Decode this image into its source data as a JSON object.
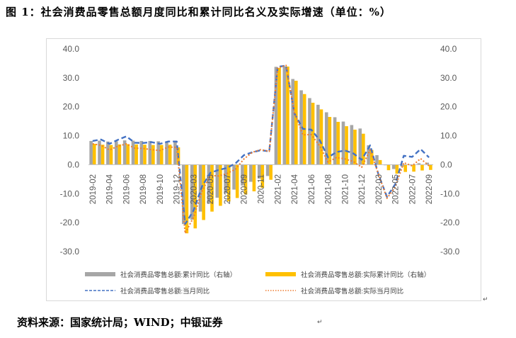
{
  "title": "图 1：社会消费品零售总额月度同比和累计同比名义及实际增速（单位：%）",
  "source": "资料来源：国家统计局；WIND；中银证券",
  "paragraph_mark": "↵",
  "chart_data": {
    "type": "bar",
    "title": "图 1：社会消费品零售总额月度同比和累计同比名义及实际增速（单位：%）",
    "categories": [
      "2019-02",
      "2019-03",
      "2019-04",
      "2019-05",
      "2019-06",
      "2019-07",
      "2019-08",
      "2019-09",
      "2019-10",
      "2019-11",
      "2019-12",
      "2020-02",
      "2020-03",
      "2020-04",
      "2020-05",
      "2020-06",
      "2020-07",
      "2020-08",
      "2020-09",
      "2020-10",
      "2020-11",
      "2020-12",
      "2021-02",
      "2021-03",
      "2021-04",
      "2021-05",
      "2021-06",
      "2021-07",
      "2021-08",
      "2021-09",
      "2021-10",
      "2021-11",
      "2021-12",
      "2022-02",
      "2022-03",
      "2022-04",
      "2022-05",
      "2022-06",
      "2022-07",
      "2022-08",
      "2022-09"
    ],
    "x_tick_labels": [
      "2019-02",
      "2019-04",
      "2019-06",
      "2019-08",
      "2019-10",
      "2019-12",
      "2020-03",
      "2020-05",
      "2020-07",
      "2020-09",
      "2020-11",
      "2021-02",
      "2021-04",
      "2021-06",
      "2021-08",
      "2021-10",
      "2021-12",
      "2022-03",
      "2022-05",
      "2022-07",
      "2022-09"
    ],
    "ylim": [
      -30,
      40
    ],
    "y_ticks": [
      "40.0",
      "30.0",
      "20.0",
      "10.0",
      "0.0",
      "-10.0",
      "-20.0",
      "-30.0"
    ],
    "right_axis_ticks": [
      "40.0",
      "30.0",
      "20.0",
      "10.0",
      "0.0",
      "-10.0",
      "-20.0",
      "-30.0"
    ],
    "grid": false,
    "legend_position": "bottom",
    "series": [
      {
        "name": "社会消费品零售总额:累计同比（右轴）",
        "kind": "bar",
        "color": "#a6a6a6",
        "values": [
          8.2,
          8.3,
          8.0,
          8.1,
          8.4,
          8.3,
          8.2,
          8.2,
          8.1,
          8.0,
          8.0,
          -20.5,
          -19.0,
          -16.2,
          -13.5,
          -11.4,
          -9.9,
          -8.6,
          -7.2,
          -5.9,
          -4.8,
          -3.9,
          33.8,
          33.9,
          29.6,
          25.7,
          23.0,
          20.7,
          18.1,
          16.4,
          14.9,
          13.7,
          12.5,
          6.7,
          3.3,
          -0.2,
          -1.5,
          -0.7,
          -0.2,
          0.5,
          0.7
        ]
      },
      {
        "name": "社会消费品零售总额:实际累计同比（右轴）",
        "kind": "bar",
        "color": "#ffc000",
        "values": [
          7.2,
          6.9,
          6.8,
          7.0,
          7.1,
          7.0,
          6.9,
          6.8,
          6.8,
          6.9,
          6.0,
          -23.7,
          -22.0,
          -19.1,
          -16.2,
          -14.2,
          -12.7,
          -11.5,
          -10.3,
          -9.2,
          -8.0,
          -5.2,
          33.4,
          33.9,
          29.0,
          24.4,
          21.4,
          19.1,
          16.5,
          14.8,
          13.3,
          12.1,
          10.7,
          5.1,
          1.6,
          -1.9,
          -3.1,
          -2.5,
          -2.4,
          -2.0,
          -1.8
        ]
      },
      {
        "name": "社会消费品零售总额:当月同比",
        "kind": "line",
        "color": "#4472c4",
        "dash": "dash",
        "values": [
          8.2,
          8.7,
          7.2,
          8.6,
          9.8,
          7.6,
          7.5,
          7.8,
          7.2,
          8.0,
          8.0,
          -20.5,
          -15.8,
          -7.5,
          -2.8,
          -1.8,
          -1.1,
          0.5,
          3.3,
          4.3,
          5.0,
          4.6,
          33.8,
          34.2,
          17.7,
          12.4,
          12.1,
          8.5,
          2.5,
          4.4,
          4.9,
          3.9,
          1.7,
          6.7,
          -3.5,
          -11.1,
          -6.7,
          3.1,
          2.7,
          5.4,
          2.5
        ]
      },
      {
        "name": "社会消费品零售总额:实际当月同比",
        "kind": "line",
        "color": "#ed7d31",
        "dash": "dot",
        "values": [
          7.2,
          6.7,
          5.1,
          6.4,
          7.2,
          5.7,
          5.6,
          5.2,
          4.9,
          6.1,
          6.0,
          -23.7,
          -18.1,
          -9.1,
          -3.7,
          -3.9,
          -3.0,
          -1.5,
          2.0,
          4.3,
          5.2,
          4.6,
          33.4,
          34.3,
          18.0,
          10.3,
          10.4,
          6.5,
          0.9,
          2.5,
          2.0,
          1.1,
          -0.9,
          5.1,
          -3.3,
          -11.6,
          -7.7,
          0.7,
          -0.4,
          2.1,
          -0.4
        ]
      }
    ]
  }
}
